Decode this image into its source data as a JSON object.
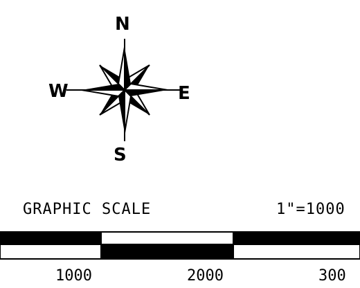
{
  "compass": {
    "north": "N",
    "south": "S",
    "east": "E",
    "west": "W",
    "icon": "compass-rose-icon"
  },
  "scale": {
    "title": "GRAPHIC SCALE",
    "ratio": "1\"=1000",
    "labels": [
      "1000",
      "2000",
      "300"
    ]
  },
  "colors": {
    "ink": "#000000",
    "paper": "#ffffff"
  }
}
